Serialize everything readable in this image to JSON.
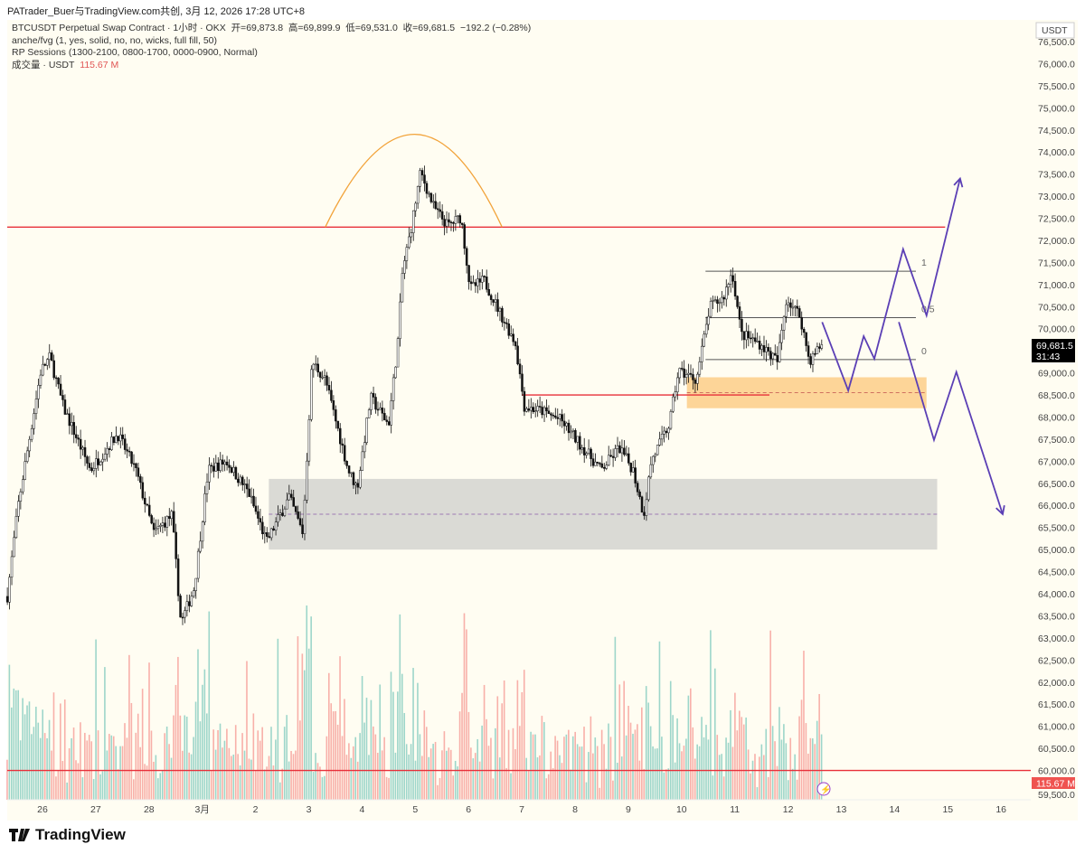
{
  "credit": "PATrader_Buer与TradingView.com共创, 3月 12, 2026 17:28 UTC+8",
  "legend": {
    "symbol_line": "BTCUSDT Perpetual Swap Contract · 1小时 · OKX",
    "open": "开=69,873.8",
    "high": "高=69,899.9",
    "low": "低=69,531.0",
    "close": "收=69,681.5",
    "change": "−192.2 (−0.28%)",
    "indicator_1": "anche/fvg (1, yes, solid, no, no, wicks, full fill, 50)",
    "indicator_2": "RP Sessions (1300-2100, 0800-1700, 0000-0900, Normal)",
    "volume_label": "成交量 · USDT",
    "volume_value": "115.67 M"
  },
  "currency": "USDT",
  "last_price_label": "69,681.5",
  "countdown": "31:43",
  "volume_badge": "115.67 M",
  "logo_text": "TradingView",
  "colors": {
    "up": "#26a69a",
    "down": "#ef5350",
    "candle_up": "#ffffff",
    "candle_down": "#111111",
    "resistance": "#e8303a",
    "zone_gray": "#d6d6d2",
    "zone_orange": "#fdd08e",
    "projection": "#5b3fb5",
    "arc": "#f2a33a"
  },
  "chart_data": {
    "type": "candlestick",
    "title": "BTCUSDT Perpetual Swap Contract · 1小时 · OKX",
    "ylabel": "USDT",
    "ylim": [
      59500,
      76500
    ],
    "y_tick_step": 500,
    "x_ticks": [
      "26",
      "27",
      "28",
      "3月",
      "2",
      "3",
      "4",
      "5",
      "6",
      "7",
      "8",
      "9",
      "10",
      "11",
      "12",
      "13",
      "14",
      "15",
      "16"
    ],
    "x_tick_note": "day index 0 = Feb 26",
    "price_path": [
      [
        -0.66,
        63940
      ],
      [
        -0.46,
        65985
      ],
      [
        -0.03,
        69050
      ],
      [
        0.14,
        69360
      ],
      [
        0.39,
        68230
      ],
      [
        0.9,
        66800
      ],
      [
        1.41,
        67620
      ],
      [
        1.75,
        66800
      ],
      [
        2.09,
        65370
      ],
      [
        2.43,
        65780
      ],
      [
        2.6,
        63330
      ],
      [
        2.85,
        64140
      ],
      [
        3.11,
        66800
      ],
      [
        3.45,
        67000
      ],
      [
        3.87,
        66290
      ],
      [
        4.21,
        65170
      ],
      [
        4.63,
        66190
      ],
      [
        4.89,
        65370
      ],
      [
        5.06,
        69260
      ],
      [
        5.31,
        68850
      ],
      [
        5.74,
        66800
      ],
      [
        5.91,
        66390
      ],
      [
        6.16,
        68440
      ],
      [
        6.5,
        67830
      ],
      [
        6.67,
        69670
      ],
      [
        6.76,
        71300
      ],
      [
        6.93,
        72330
      ],
      [
        7.1,
        73550
      ],
      [
        7.35,
        72740
      ],
      [
        7.61,
        72330
      ],
      [
        7.86,
        72530
      ],
      [
        8.03,
        70900
      ],
      [
        8.29,
        71100
      ],
      [
        8.54,
        70490
      ],
      [
        8.88,
        69670
      ],
      [
        9.05,
        68230
      ],
      [
        9.39,
        68130
      ],
      [
        9.73,
        67930
      ],
      [
        10.07,
        67420
      ],
      [
        10.49,
        66800
      ],
      [
        10.83,
        67310
      ],
      [
        11.09,
        66800
      ],
      [
        11.29,
        65780
      ],
      [
        11.43,
        67010
      ],
      [
        11.77,
        67830
      ],
      [
        11.94,
        69050
      ],
      [
        12.28,
        68850
      ],
      [
        12.53,
        70490
      ],
      [
        12.78,
        70690
      ],
      [
        12.95,
        71300
      ],
      [
        13.12,
        69880
      ],
      [
        13.46,
        69670
      ],
      [
        13.8,
        69260
      ],
      [
        13.97,
        70690
      ],
      [
        14.23,
        70280
      ],
      [
        14.4,
        69260
      ],
      [
        14.65,
        69681.5
      ]
    ],
    "horizontal_lines": [
      {
        "name": "resistance-72300",
        "price": 72300,
        "from_day": -0.7,
        "to_day": 16.95
      },
      {
        "name": "level-68500",
        "price": 68500,
        "from_day": 9.0,
        "to_day": 13.65
      },
      {
        "name": "volume-level-60000",
        "price": 60000,
        "from_day": -0.7,
        "to_day": 18.6
      }
    ],
    "zones": [
      {
        "name": "demand-zone-gray",
        "top": 66600,
        "bottom": 65000,
        "mid": 65800,
        "from_day": 4.25,
        "to_day": 16.8
      },
      {
        "name": "demand-zone-orange",
        "top": 68900,
        "bottom": 68200,
        "mid": 68550,
        "from_day": 12.1,
        "to_day": 16.6
      }
    ],
    "fib_levels": [
      {
        "label": "1",
        "price": 71300
      },
      {
        "label": "0.5",
        "price": 70250
      },
      {
        "label": "0",
        "price": 69300
      }
    ],
    "fib_range_days": [
      12.45,
      16.4
    ],
    "projection_bullish": [
      [
        14.64,
        70150
      ],
      [
        15.13,
        68600
      ],
      [
        15.42,
        69830
      ],
      [
        15.62,
        69320
      ],
      [
        16.16,
        71800
      ],
      [
        16.6,
        70300
      ],
      [
        17.23,
        73400
      ]
    ],
    "projection_bearish": [
      [
        16.08,
        70150
      ],
      [
        16.74,
        67480
      ],
      [
        17.16,
        69020
      ],
      [
        18.03,
        65800
      ]
    ],
    "arc": {
      "start": [
        5.31,
        72300
      ],
      "peak": [
        7.0,
        74400
      ],
      "end": [
        8.63,
        72300
      ]
    }
  }
}
